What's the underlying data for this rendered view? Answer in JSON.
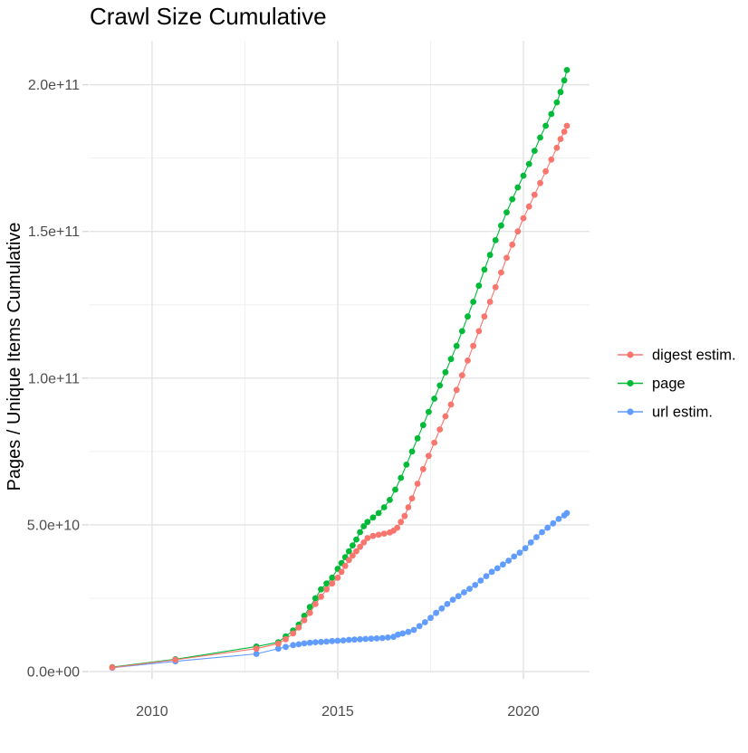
{
  "title": "Crawl Size Cumulative",
  "y_axis_title": "Pages / Unique Items Cumulative",
  "legend": {
    "position": "right",
    "items": [
      {
        "label": "digest estim.",
        "color": "#F8766D"
      },
      {
        "label": "page",
        "color": "#00BA38"
      },
      {
        "label": "url estim.",
        "color": "#619CFF"
      }
    ]
  },
  "chart_data": {
    "type": "line",
    "title": "Crawl Size Cumulative",
    "xlabel": "",
    "ylabel": "Pages / Unique Items Cumulative",
    "grid": true,
    "legend_position": "right",
    "values_unit": "1e10 pages (y values below are in units of 1e10)",
    "xlim": [
      2008.32,
      2021.78
    ],
    "ylim": [
      0,
      21.5
    ],
    "x_ticks": [
      {
        "value": 2010,
        "label": "2010"
      },
      {
        "value": 2015,
        "label": "2015"
      },
      {
        "value": 2020,
        "label": "2020"
      }
    ],
    "x_minor_ticks": [
      2012.5,
      2017.5
    ],
    "y_ticks": [
      {
        "value": 0,
        "label": "0.0e+00"
      },
      {
        "value": 5,
        "label": "5.0e+10"
      },
      {
        "value": 10,
        "label": "1.0e+11"
      },
      {
        "value": 15,
        "label": "1.5e+11"
      },
      {
        "value": 20,
        "label": "2.0e+11"
      }
    ],
    "y_minor_ticks": [
      2.5,
      7.5,
      12.5,
      17.5
    ],
    "series": [
      {
        "name": "digest estim.",
        "color": "#F8766D",
        "draw_order": 3,
        "points": [
          [
            2008.93,
            0.14
          ],
          [
            2010.63,
            0.4
          ],
          [
            2012.81,
            0.78
          ],
          [
            2013.4,
            0.95
          ],
          [
            2013.6,
            1.1
          ],
          [
            2013.8,
            1.3
          ],
          [
            2013.95,
            1.5
          ],
          [
            2014.1,
            1.75
          ],
          [
            2014.25,
            2.0
          ],
          [
            2014.4,
            2.3
          ],
          [
            2014.55,
            2.55
          ],
          [
            2014.7,
            2.8
          ],
          [
            2014.85,
            3.0
          ],
          [
            2015.0,
            3.2
          ],
          [
            2015.1,
            3.4
          ],
          [
            2015.2,
            3.6
          ],
          [
            2015.3,
            3.8
          ],
          [
            2015.4,
            3.95
          ],
          [
            2015.5,
            4.1
          ],
          [
            2015.6,
            4.25
          ],
          [
            2015.7,
            4.4
          ],
          [
            2015.8,
            4.55
          ],
          [
            2015.95,
            4.62
          ],
          [
            2016.1,
            4.66
          ],
          [
            2016.25,
            4.7
          ],
          [
            2016.4,
            4.74
          ],
          [
            2016.5,
            4.8
          ],
          [
            2016.6,
            4.9
          ],
          [
            2016.7,
            5.1
          ],
          [
            2016.8,
            5.3
          ],
          [
            2016.9,
            5.6
          ],
          [
            2017.0,
            5.9
          ],
          [
            2017.15,
            6.4
          ],
          [
            2017.3,
            6.9
          ],
          [
            2017.45,
            7.35
          ],
          [
            2017.6,
            7.8
          ],
          [
            2017.75,
            8.25
          ],
          [
            2017.9,
            8.7
          ],
          [
            2018.05,
            9.1
          ],
          [
            2018.2,
            9.6
          ],
          [
            2018.35,
            10.1
          ],
          [
            2018.5,
            10.6
          ],
          [
            2018.65,
            11.1
          ],
          [
            2018.8,
            11.6
          ],
          [
            2018.95,
            12.1
          ],
          [
            2019.1,
            12.6
          ],
          [
            2019.25,
            13.1
          ],
          [
            2019.4,
            13.6
          ],
          [
            2019.55,
            14.1
          ],
          [
            2019.7,
            14.55
          ],
          [
            2019.85,
            15.0
          ],
          [
            2020.0,
            15.45
          ],
          [
            2020.15,
            15.85
          ],
          [
            2020.3,
            16.25
          ],
          [
            2020.45,
            16.65
          ],
          [
            2020.6,
            17.05
          ],
          [
            2020.75,
            17.45
          ],
          [
            2020.9,
            17.85
          ],
          [
            2021.0,
            18.15
          ],
          [
            2021.1,
            18.4
          ],
          [
            2021.17,
            18.6
          ]
        ]
      },
      {
        "name": "page",
        "color": "#00BA38",
        "draw_order": 1,
        "points": [
          [
            2008.93,
            0.15
          ],
          [
            2010.63,
            0.42
          ],
          [
            2012.81,
            0.85
          ],
          [
            2013.4,
            1.0
          ],
          [
            2013.6,
            1.2
          ],
          [
            2013.8,
            1.4
          ],
          [
            2013.95,
            1.6
          ],
          [
            2014.1,
            1.9
          ],
          [
            2014.25,
            2.2
          ],
          [
            2014.4,
            2.5
          ],
          [
            2014.55,
            2.8
          ],
          [
            2014.7,
            3.0
          ],
          [
            2014.85,
            3.2
          ],
          [
            2015.0,
            3.5
          ],
          [
            2015.1,
            3.7
          ],
          [
            2015.2,
            3.9
          ],
          [
            2015.3,
            4.1
          ],
          [
            2015.4,
            4.3
          ],
          [
            2015.5,
            4.5
          ],
          [
            2015.6,
            4.75
          ],
          [
            2015.7,
            4.95
          ],
          [
            2015.8,
            5.1
          ],
          [
            2015.95,
            5.25
          ],
          [
            2016.1,
            5.4
          ],
          [
            2016.25,
            5.6
          ],
          [
            2016.4,
            5.85
          ],
          [
            2016.55,
            6.2
          ],
          [
            2016.7,
            6.6
          ],
          [
            2016.85,
            7.05
          ],
          [
            2017.0,
            7.5
          ],
          [
            2017.15,
            7.95
          ],
          [
            2017.3,
            8.4
          ],
          [
            2017.45,
            8.85
          ],
          [
            2017.6,
            9.3
          ],
          [
            2017.75,
            9.75
          ],
          [
            2017.9,
            10.2
          ],
          [
            2018.05,
            10.65
          ],
          [
            2018.2,
            11.1
          ],
          [
            2018.35,
            11.6
          ],
          [
            2018.5,
            12.1
          ],
          [
            2018.65,
            12.6
          ],
          [
            2018.8,
            13.15
          ],
          [
            2018.95,
            13.7
          ],
          [
            2019.1,
            14.2
          ],
          [
            2019.25,
            14.7
          ],
          [
            2019.4,
            15.2
          ],
          [
            2019.55,
            15.65
          ],
          [
            2019.7,
            16.1
          ],
          [
            2019.85,
            16.5
          ],
          [
            2020.0,
            16.9
          ],
          [
            2020.15,
            17.3
          ],
          [
            2020.3,
            17.75
          ],
          [
            2020.45,
            18.2
          ],
          [
            2020.6,
            18.6
          ],
          [
            2020.75,
            19.0
          ],
          [
            2020.9,
            19.4
          ],
          [
            2021.0,
            19.75
          ],
          [
            2021.1,
            20.15
          ],
          [
            2021.17,
            20.5
          ]
        ]
      },
      {
        "name": "url estim.",
        "color": "#619CFF",
        "draw_order": 2,
        "points": [
          [
            2008.93,
            0.13
          ],
          [
            2010.63,
            0.35
          ],
          [
            2012.81,
            0.6
          ],
          [
            2013.4,
            0.78
          ],
          [
            2013.6,
            0.84
          ],
          [
            2013.8,
            0.9
          ],
          [
            2013.95,
            0.93
          ],
          [
            2014.1,
            0.96
          ],
          [
            2014.25,
            0.98
          ],
          [
            2014.4,
            1.0
          ],
          [
            2014.55,
            1.01
          ],
          [
            2014.7,
            1.02
          ],
          [
            2014.85,
            1.04
          ],
          [
            2015.0,
            1.05
          ],
          [
            2015.15,
            1.06
          ],
          [
            2015.3,
            1.08
          ],
          [
            2015.45,
            1.09
          ],
          [
            2015.6,
            1.1
          ],
          [
            2015.75,
            1.11
          ],
          [
            2015.9,
            1.12
          ],
          [
            2016.05,
            1.13
          ],
          [
            2016.2,
            1.14
          ],
          [
            2016.35,
            1.16
          ],
          [
            2016.5,
            1.18
          ],
          [
            2016.62,
            1.26
          ],
          [
            2016.75,
            1.3
          ],
          [
            2016.9,
            1.35
          ],
          [
            2017.05,
            1.42
          ],
          [
            2017.2,
            1.55
          ],
          [
            2017.35,
            1.68
          ],
          [
            2017.5,
            1.83
          ],
          [
            2017.65,
            2.0
          ],
          [
            2017.8,
            2.15
          ],
          [
            2017.95,
            2.3
          ],
          [
            2018.1,
            2.45
          ],
          [
            2018.25,
            2.57
          ],
          [
            2018.4,
            2.7
          ],
          [
            2018.55,
            2.82
          ],
          [
            2018.7,
            2.95
          ],
          [
            2018.85,
            3.1
          ],
          [
            2019.0,
            3.25
          ],
          [
            2019.15,
            3.4
          ],
          [
            2019.3,
            3.52
          ],
          [
            2019.45,
            3.65
          ],
          [
            2019.6,
            3.78
          ],
          [
            2019.75,
            3.92
          ],
          [
            2019.9,
            4.05
          ],
          [
            2020.05,
            4.2
          ],
          [
            2020.2,
            4.4
          ],
          [
            2020.35,
            4.58
          ],
          [
            2020.5,
            4.75
          ],
          [
            2020.65,
            4.9
          ],
          [
            2020.8,
            5.05
          ],
          [
            2020.95,
            5.2
          ],
          [
            2021.1,
            5.32
          ],
          [
            2021.17,
            5.4
          ]
        ]
      }
    ]
  }
}
